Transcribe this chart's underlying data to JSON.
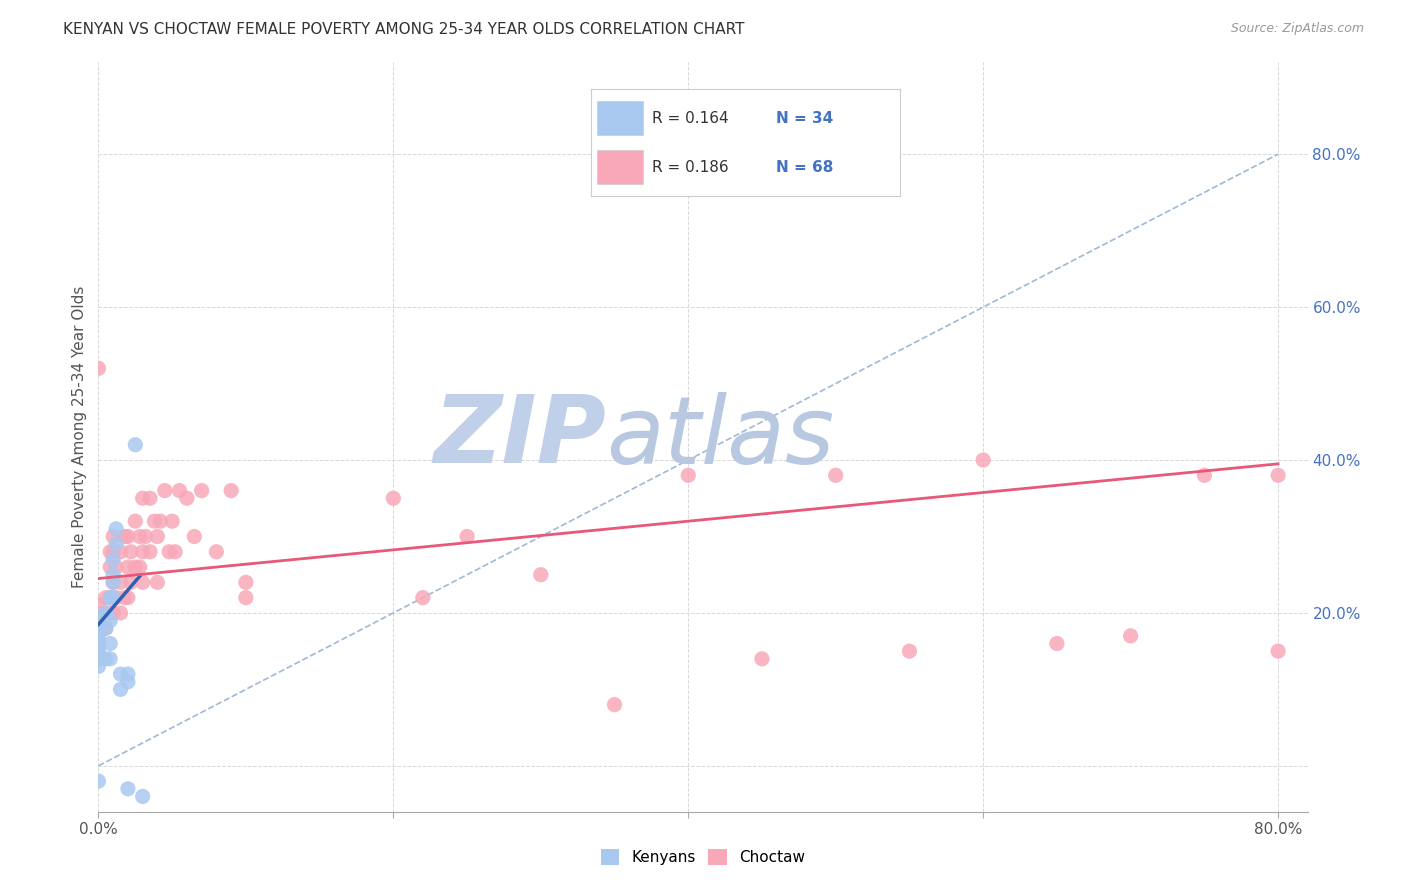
{
  "title": "KENYAN VS CHOCTAW FEMALE POVERTY AMONG 25-34 YEAR OLDS CORRELATION CHART",
  "source": "Source: ZipAtlas.com",
  "ylabel": "Female Poverty Among 25-34 Year Olds",
  "xlim": [
    0.0,
    0.82
  ],
  "ylim": [
    -0.06,
    0.92
  ],
  "x_ticks": [
    0.0,
    0.2,
    0.4,
    0.6,
    0.8
  ],
  "x_tick_labels": [
    "0.0%",
    "",
    "",
    "",
    "80.0%"
  ],
  "right_y_ticks": [
    0.2,
    0.4,
    0.6,
    0.8
  ],
  "right_y_tick_labels": [
    "20.0%",
    "40.0%",
    "60.0%",
    "80.0%"
  ],
  "background_color": "#ffffff",
  "grid_color": "#d8d8d8",
  "watermark_zip": "ZIP",
  "watermark_atlas": "atlas",
  "watermark_color": "#c8d8ee",
  "title_color": "#333333",
  "source_color": "#999999",
  "legend_R_color": "#333333",
  "legend_N_color": "#4472c4",
  "kenyan_color": "#a8c8f0",
  "choctaw_color": "#f8a8b8",
  "kenyan_line_color": "#3060b0",
  "choctaw_line_color": "#e85878",
  "diagonal_line_color": "#a0b8d8",
  "kenyan_R": 0.164,
  "kenyan_N": 34,
  "choctaw_R": 0.186,
  "choctaw_N": 68,
  "kenyan_scatter_x": [
    0.0,
    0.0,
    0.0,
    0.0,
    0.0,
    0.0,
    0.0,
    0.0,
    0.0,
    0.0,
    0.0,
    0.0,
    0.0,
    0.0,
    0.005,
    0.005,
    0.005,
    0.008,
    0.008,
    0.008,
    0.008,
    0.01,
    0.01,
    0.01,
    0.01,
    0.012,
    0.012,
    0.015,
    0.015,
    0.02,
    0.02,
    0.02,
    0.025,
    0.03
  ],
  "kenyan_scatter_y": [
    0.13,
    0.14,
    0.15,
    0.155,
    0.16,
    0.16,
    0.165,
    0.17,
    0.175,
    0.18,
    0.185,
    0.19,
    0.195,
    -0.02,
    0.14,
    0.18,
    0.2,
    0.14,
    0.16,
    0.19,
    0.22,
    0.22,
    0.24,
    0.25,
    0.27,
    0.29,
    0.31,
    0.1,
    0.12,
    0.12,
    0.11,
    -0.03,
    0.42,
    -0.04
  ],
  "choctaw_scatter_x": [
    0.0,
    0.0,
    0.0,
    0.0,
    0.005,
    0.005,
    0.005,
    0.008,
    0.008,
    0.008,
    0.008,
    0.01,
    0.01,
    0.01,
    0.01,
    0.012,
    0.012,
    0.015,
    0.015,
    0.015,
    0.018,
    0.018,
    0.02,
    0.02,
    0.02,
    0.022,
    0.022,
    0.025,
    0.025,
    0.028,
    0.028,
    0.03,
    0.03,
    0.03,
    0.032,
    0.035,
    0.035,
    0.038,
    0.04,
    0.04,
    0.042,
    0.045,
    0.048,
    0.05,
    0.052,
    0.055,
    0.06,
    0.065,
    0.07,
    0.08,
    0.09,
    0.1,
    0.1,
    0.35,
    0.4,
    0.45,
    0.5,
    0.55,
    0.6,
    0.65,
    0.7,
    0.75,
    0.8,
    0.8,
    0.2,
    0.22,
    0.25,
    0.3
  ],
  "choctaw_scatter_y": [
    0.19,
    0.2,
    0.21,
    0.52,
    0.18,
    0.2,
    0.22,
    0.2,
    0.22,
    0.26,
    0.28,
    0.2,
    0.24,
    0.28,
    0.3,
    0.22,
    0.26,
    0.2,
    0.24,
    0.28,
    0.22,
    0.3,
    0.22,
    0.26,
    0.3,
    0.24,
    0.28,
    0.26,
    0.32,
    0.26,
    0.3,
    0.24,
    0.28,
    0.35,
    0.3,
    0.28,
    0.35,
    0.32,
    0.24,
    0.3,
    0.32,
    0.36,
    0.28,
    0.32,
    0.28,
    0.36,
    0.35,
    0.3,
    0.36,
    0.28,
    0.36,
    0.24,
    0.22,
    0.08,
    0.38,
    0.14,
    0.38,
    0.15,
    0.4,
    0.16,
    0.17,
    0.38,
    0.38,
    0.15,
    0.35,
    0.22,
    0.3,
    0.25
  ],
  "kenyan_line_x": [
    0.0,
    0.028
  ],
  "kenyan_line_y": [
    0.185,
    0.248
  ],
  "choctaw_line_x": [
    0.0,
    0.8
  ],
  "choctaw_line_y": [
    0.245,
    0.395
  ]
}
